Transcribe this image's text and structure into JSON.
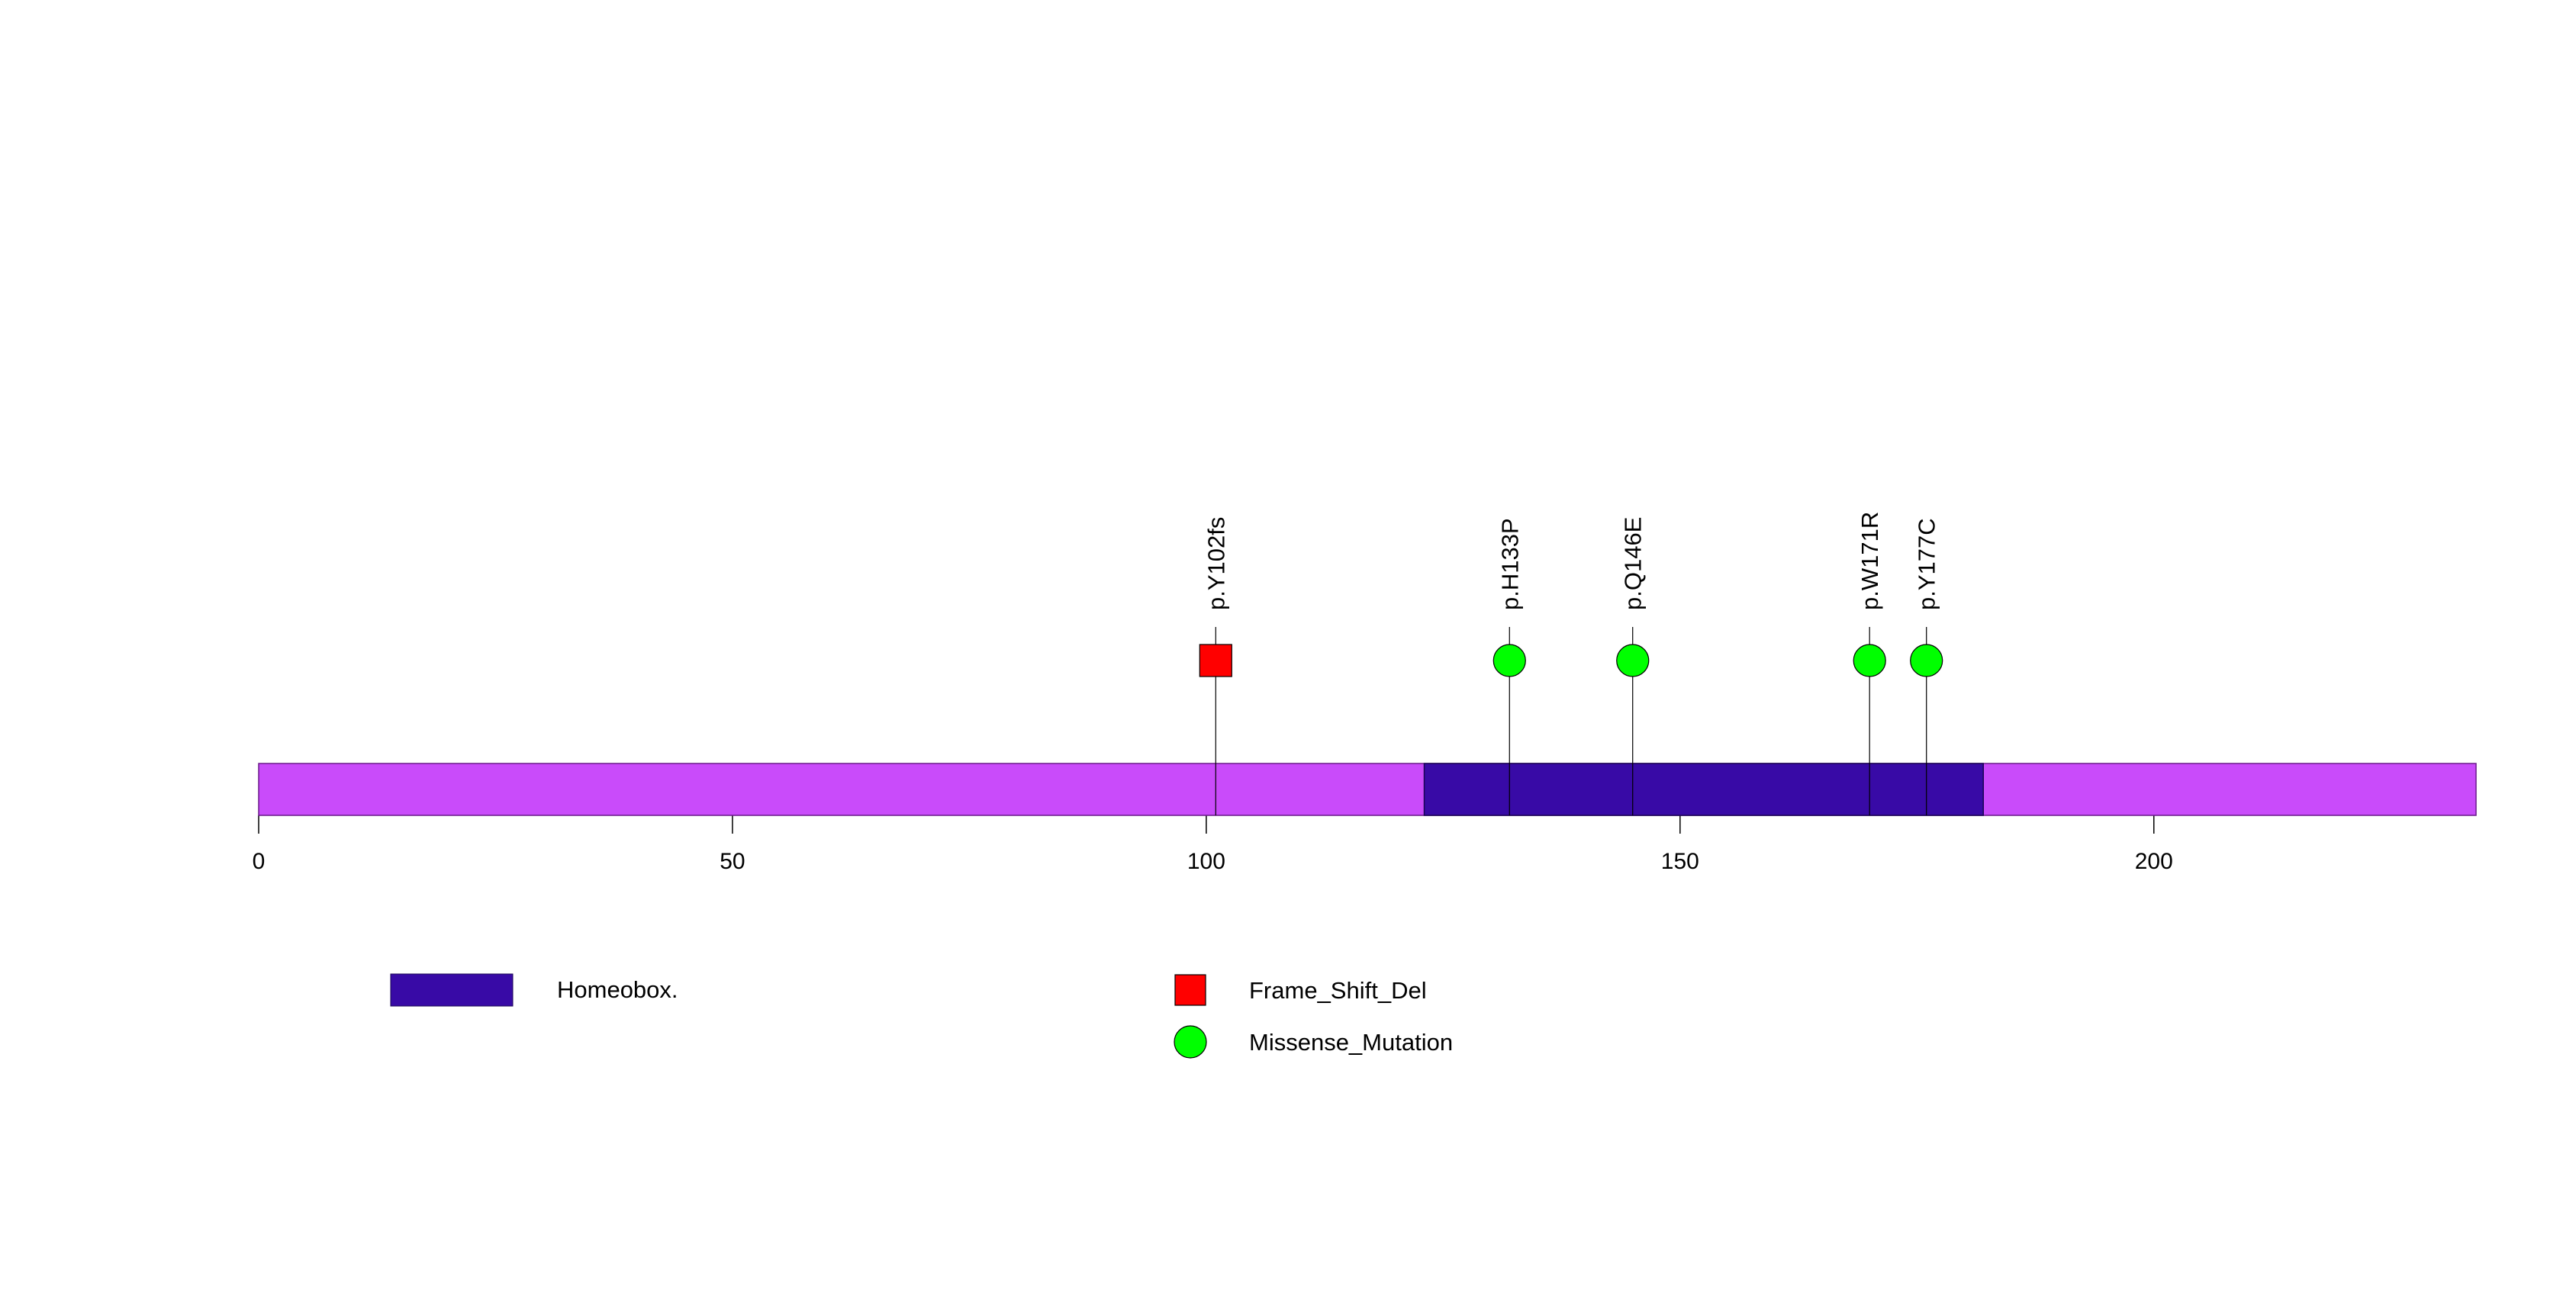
{
  "chart_data": {
    "type": "lollipop",
    "protein_length": 234,
    "x_range": [
      0,
      234
    ],
    "x_ticks": [
      0,
      50,
      100,
      150,
      200
    ],
    "backbone_color": "#c94bfa",
    "domains": [
      {
        "name": "Homeobox.",
        "start": 123,
        "end": 182,
        "color": "#380aa6"
      }
    ],
    "mutations": [
      {
        "label": "p.Y102fs",
        "position": 101,
        "type": "Frame_Shift_Del"
      },
      {
        "label": "p.H133P",
        "position": 132,
        "type": "Missense_Mutation"
      },
      {
        "label": "p.Q146E",
        "position": 145,
        "type": "Missense_Mutation"
      },
      {
        "label": "p.W171R",
        "position": 170,
        "type": "Missense_Mutation"
      },
      {
        "label": "p.Y177C",
        "position": 176,
        "type": "Missense_Mutation"
      }
    ],
    "mutation_types": [
      {
        "name": "Frame_Shift_Del",
        "shape": "square",
        "color": "#ff0000"
      },
      {
        "name": "Missense_Mutation",
        "shape": "circle",
        "color": "#00ff00"
      }
    ],
    "legend": {
      "domains": [
        "Homeobox."
      ],
      "mutation_types": [
        "Frame_Shift_Del",
        "Missense_Mutation"
      ]
    }
  }
}
